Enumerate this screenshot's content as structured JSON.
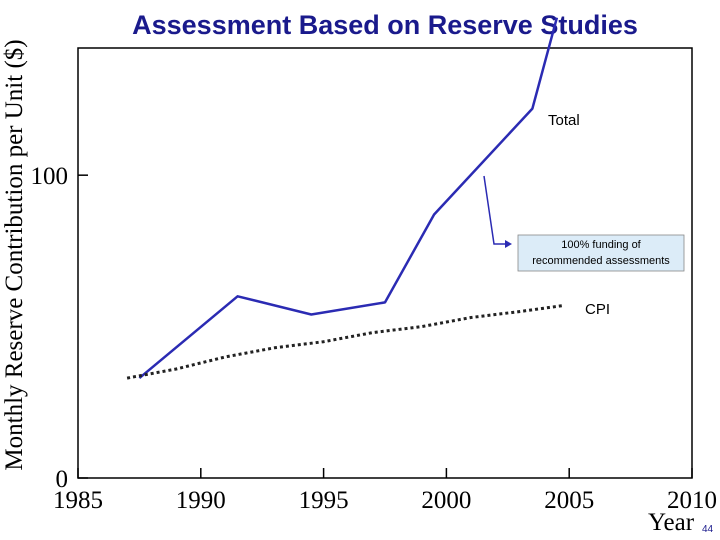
{
  "page_number": "44",
  "chart_data": {
    "type": "line",
    "title": "Assessment Based on Reserve Studies",
    "xlabel": "Year",
    "ylabel": "Monthly Reserve Contribution per Unit ($)",
    "xlim": [
      1985,
      2010
    ],
    "ylim": [
      0,
      142
    ],
    "x_ticks": [
      1985,
      1990,
      1995,
      2000,
      2005,
      2010
    ],
    "y_ticks": [
      0,
      100
    ],
    "grid": false,
    "series": [
      {
        "name": "Total",
        "color": "#2b2bb3",
        "style": "solid",
        "x": [
          1987.5,
          1991.5,
          1994.5,
          1997.5,
          1999.5,
          2003.5,
          2004.5
        ],
        "y": [
          33,
          60,
          54,
          58,
          87,
          122,
          152
        ]
      },
      {
        "name": "CPI",
        "color": "#222222",
        "style": "dotted",
        "x": [
          1987,
          1989,
          1991,
          1993,
          1995,
          1997,
          1999,
          2001,
          2003,
          2004.8
        ],
        "y": [
          33,
          36,
          40,
          43,
          45,
          48,
          50,
          53,
          55,
          57
        ]
      }
    ],
    "annotations": {
      "total_label": "Total",
      "cpi_label": "CPI",
      "note_line1": "100% funding of",
      "note_line2": "recommended assessments",
      "note_box_fill": "#dcecf8"
    }
  }
}
